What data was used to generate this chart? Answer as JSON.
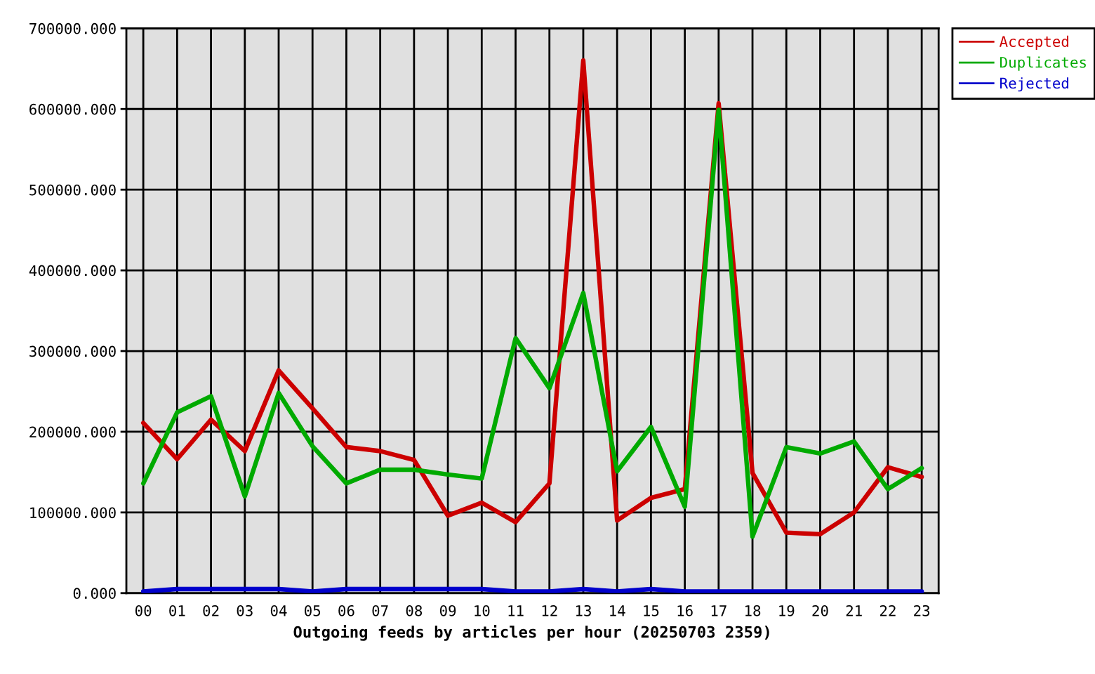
{
  "chart_data": {
    "type": "line",
    "xlabel": "Outgoing feeds by articles per hour (20250703 2359)",
    "categories": [
      "00",
      "01",
      "02",
      "03",
      "04",
      "05",
      "06",
      "07",
      "08",
      "09",
      "10",
      "11",
      "12",
      "13",
      "14",
      "15",
      "16",
      "17",
      "18",
      "19",
      "20",
      "21",
      "22",
      "23"
    ],
    "series": [
      {
        "name": "Accepted",
        "color": "#cc0000",
        "values": [
          211000,
          166000,
          215000,
          176000,
          276000,
          229000,
          181000,
          176000,
          165000,
          96000,
          112000,
          88000,
          136000,
          660000,
          90000,
          118000,
          129000,
          607000,
          149000,
          75000,
          73000,
          100000,
          156000,
          144000
        ]
      },
      {
        "name": "Duplicates",
        "color": "#00aa00",
        "values": [
          136000,
          224000,
          244000,
          120000,
          248000,
          182000,
          136000,
          153000,
          153000,
          147000,
          142000,
          316000,
          254000,
          372000,
          151000,
          206000,
          107000,
          599000,
          70000,
          181000,
          173000,
          188000,
          129000,
          155000
        ]
      },
      {
        "name": "Rejected",
        "color": "#0000cc",
        "values": [
          2000,
          5000,
          5000,
          5000,
          5000,
          2000,
          5000,
          5000,
          5000,
          5000,
          5000,
          2000,
          2000,
          5000,
          2000,
          5000,
          2000,
          2000,
          2000,
          2000,
          2000,
          2000,
          2000,
          2000
        ]
      }
    ],
    "ylim": [
      0,
      700000
    ],
    "yticks": [
      {
        "value": 0,
        "label": "0.000"
      },
      {
        "value": 100000,
        "label": "100000.000"
      },
      {
        "value": 200000,
        "label": "200000.000"
      },
      {
        "value": 300000,
        "label": "300000.000"
      },
      {
        "value": 400000,
        "label": "400000.000"
      },
      {
        "value": 500000,
        "label": "500000.000"
      },
      {
        "value": 600000,
        "label": "600000.000"
      },
      {
        "value": 700000,
        "label": "700000.000"
      }
    ],
    "grid": true,
    "legend": "top right",
    "line_style": "solid",
    "marker": "none"
  }
}
